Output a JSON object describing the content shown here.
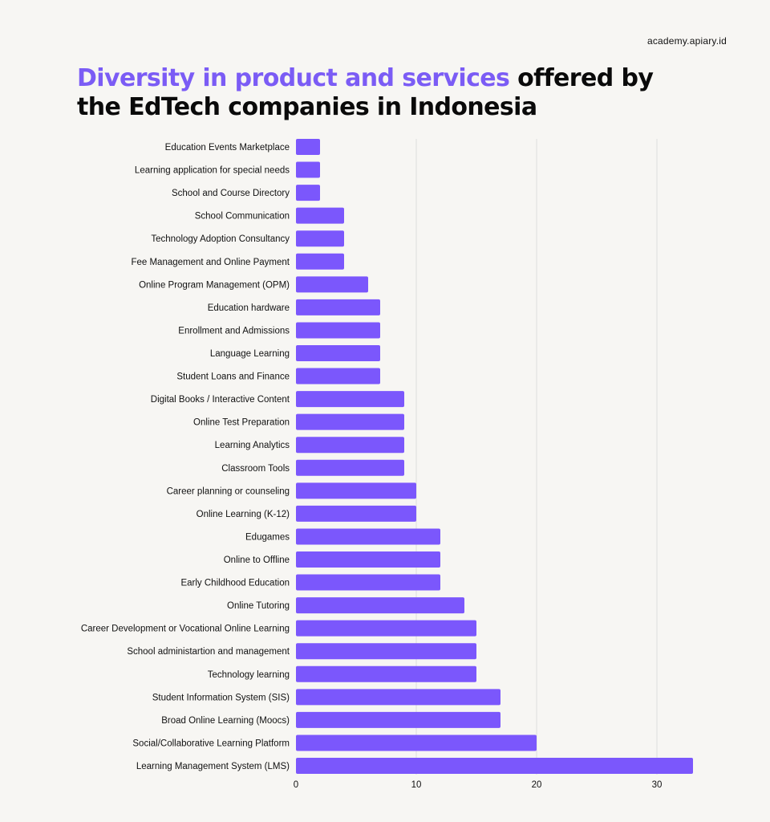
{
  "source": "academy.apiary.id",
  "title": {
    "highlight": "Diversity in product and services",
    "rest": " offered by the EdTech companies in Indonesia"
  },
  "colors": {
    "bar": "#7b57fc",
    "title_highlight": "#7b5cf5",
    "background": "#f7f6f3",
    "grid": "#dddddd"
  },
  "chart_data": {
    "type": "bar",
    "orientation": "horizontal",
    "title": "Diversity in product and services offered by the EdTech companies in Indonesia",
    "xlabel": "",
    "ylabel": "",
    "xlim": [
      0,
      33
    ],
    "xticks": [
      0,
      10,
      20,
      30
    ],
    "grid": true,
    "categories": [
      "Education Events Marketplace",
      "Learning application for special needs",
      "School and Course Directory",
      "School Communication",
      "Technology Adoption Consultancy",
      "Fee Management and Online Payment",
      "Online Program Management (OPM)",
      "Education hardware",
      "Enrollment and Admissions",
      "Language Learning",
      "Student Loans and Finance",
      "Digital Books / Interactive Content",
      "Online Test Preparation",
      "Learning Analytics",
      "Classroom Tools",
      "Career planning or counseling",
      "Online Learning (K-12)",
      "Edugames",
      "Online to Offline",
      "Early Childhood Education",
      "Online Tutoring",
      "Career Development or Vocational Online Learning",
      "School administartion and management",
      "Technology learning",
      "Student Information System (SIS)",
      "Broad Online Learning (Moocs)",
      "Social/Collaborative Learning Platform",
      "Learning Management System (LMS)"
    ],
    "values": [
      2,
      2,
      2,
      4,
      4,
      4,
      6,
      7,
      7,
      7,
      7,
      9,
      9,
      9,
      9,
      10,
      10,
      12,
      12,
      12,
      14,
      15,
      15,
      15,
      17,
      17,
      20,
      33
    ]
  }
}
